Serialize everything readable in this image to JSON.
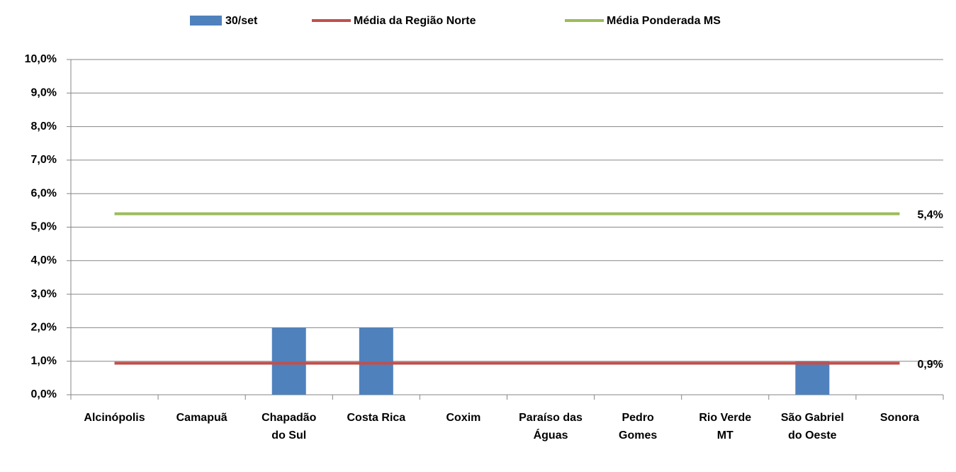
{
  "chart_data": {
    "type": "bar",
    "categories": [
      "Alcinópolis",
      "Camapuã",
      "Chapadão do Sul",
      "Costa Rica",
      "Coxim",
      "Paraíso das Águas",
      "Pedro Gomes",
      "Rio Verde MT",
      "São Gabriel do Oeste",
      "Sonora"
    ],
    "series": [
      {
        "name": "30/set",
        "type": "bar",
        "color": "#4f81bd",
        "values": [
          0,
          0,
          2.0,
          2.0,
          0,
          0,
          0,
          0,
          1.0,
          0
        ]
      },
      {
        "name": "Média da Região Norte",
        "type": "line",
        "color": "#c0504d",
        "values": [
          0.94,
          0.94,
          0.94,
          0.94,
          0.94,
          0.94,
          0.94,
          0.94,
          0.94,
          0.94
        ],
        "value_labels": [
          null,
          null,
          null,
          null,
          null,
          null,
          null,
          null,
          null,
          "0,9%"
        ]
      },
      {
        "name": "Média Ponderada MS",
        "type": "line",
        "color": "#9bbb59",
        "values": [
          5.4,
          5.4,
          5.4,
          5.4,
          5.4,
          5.4,
          5.4,
          5.4,
          5.4,
          5.4
        ],
        "value_labels": [
          null,
          null,
          null,
          null,
          null,
          null,
          null,
          null,
          null,
          "5,4%"
        ]
      }
    ],
    "ylim": [
      0,
      10
    ],
    "yticks": [
      {
        "value": 0,
        "label": "0,0%"
      },
      {
        "value": 1,
        "label": "1,0%"
      },
      {
        "value": 2,
        "label": "2,0%"
      },
      {
        "value": 3,
        "label": "3,0%"
      },
      {
        "value": 4,
        "label": "4,0%"
      },
      {
        "value": 5,
        "label": "5,0%"
      },
      {
        "value": 6,
        "label": "6,0%"
      },
      {
        "value": 7,
        "label": "7,0%"
      },
      {
        "value": 8,
        "label": "8,0%"
      },
      {
        "value": 9,
        "label": "9,0%"
      },
      {
        "value": 10,
        "label": "10,0%"
      }
    ],
    "grid": true,
    "legend": "top"
  }
}
